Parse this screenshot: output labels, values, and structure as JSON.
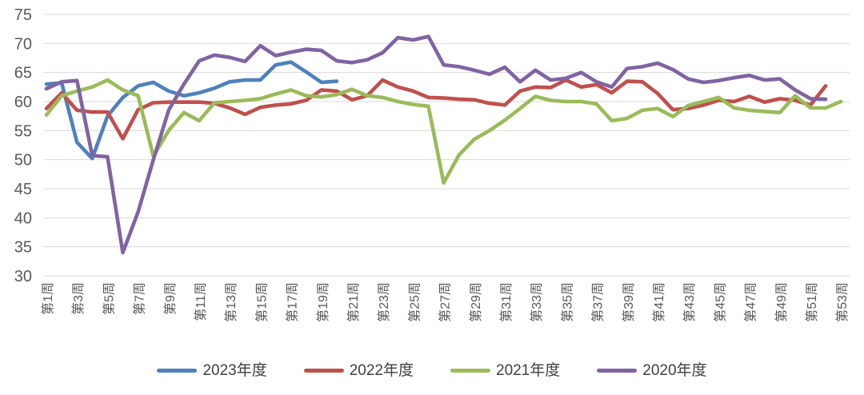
{
  "chart_data": {
    "type": "line",
    "title": "",
    "grid": "horizontal",
    "legend_position": "bottom",
    "background": "#ffffff",
    "gridline_color": "#d9d9d9",
    "axis_text_color": "#595959",
    "legend_text_color": "#3f3f3f",
    "y_axis": {
      "min": 30,
      "max": 75,
      "step": 5,
      "tick_labels": [
        "75",
        "70",
        "65",
        "60",
        "55",
        "50",
        "45",
        "40",
        "35",
        "30"
      ]
    },
    "x_axis": {
      "tick_rotation": -90,
      "label_every": 2,
      "visible_tick_labels": [
        "第1周",
        "第3周",
        "第5周",
        "第7周",
        "第9周",
        "第11周",
        "第13周",
        "第15周",
        "第17周",
        "第19周",
        "第21周",
        "第23周",
        "第25周",
        "第27周",
        "第29周",
        "第31周",
        "第33周",
        "第35周",
        "第37周",
        "第39周",
        "第41周",
        "第43周",
        "第45周",
        "第47周",
        "第49周",
        "第51周",
        "第53周"
      ]
    },
    "categories": [
      "第1周",
      "第2周",
      "第3周",
      "第4周",
      "第5周",
      "第6周",
      "第7周",
      "第8周",
      "第9周",
      "第10周",
      "第11周",
      "第12周",
      "第13周",
      "第14周",
      "第15周",
      "第16周",
      "第17周",
      "第18周",
      "第19周",
      "第20周",
      "第21周",
      "第22周",
      "第23周",
      "第24周",
      "第25周",
      "第26周",
      "第27周",
      "第28周",
      "第29周",
      "第30周",
      "第31周",
      "第32周",
      "第33周",
      "第34周",
      "第35周",
      "第36周",
      "第37周",
      "第38周",
      "第39周",
      "第40周",
      "第41周",
      "第42周",
      "第43周",
      "第44周",
      "第45周",
      "第46周",
      "第47周",
      "第48周",
      "第49周",
      "第50周",
      "第51周",
      "第52周",
      "第53周"
    ],
    "series": [
      {
        "name": "2023年度",
        "color": "#4F81BD",
        "values": [
          63.0,
          63.2,
          53.0,
          50.2,
          57.5,
          60.7,
          62.7,
          63.3,
          61.8,
          61.0,
          61.5,
          62.3,
          63.4,
          63.7,
          63.7,
          66.3,
          66.8,
          65.1,
          63.3,
          63.5
        ]
      },
      {
        "name": "2022年度",
        "color": "#C0504D",
        "values": [
          58.8,
          61.5,
          58.5,
          58.2,
          58.2,
          53.6,
          58.6,
          59.8,
          59.9,
          59.9,
          59.9,
          59.7,
          58.9,
          57.8,
          59.0,
          59.4,
          59.6,
          60.2,
          62.0,
          61.8,
          60.3,
          61.0,
          63.7,
          62.5,
          61.8,
          60.7,
          60.6,
          60.4,
          60.3,
          59.7,
          59.4,
          61.8,
          62.5,
          62.4,
          63.7,
          62.5,
          62.9,
          61.5,
          63.5,
          63.4,
          61.4,
          58.6,
          58.8,
          59.4,
          60.2,
          60.0,
          60.9,
          59.9,
          60.5,
          60.2,
          59.4,
          62.7
        ]
      },
      {
        "name": "2021年度",
        "color": "#9BBB59",
        "values": [
          57.7,
          61.0,
          61.8,
          62.5,
          63.7,
          62.0,
          61.0,
          50.6,
          55.0,
          58.1,
          56.7,
          59.8,
          60.0,
          60.2,
          60.5,
          61.3,
          62.0,
          61.0,
          60.8,
          61.2,
          62.1,
          61.0,
          60.7,
          60.0,
          59.5,
          59.2,
          46.0,
          50.8,
          53.5,
          55.0,
          56.8,
          58.8,
          60.9,
          60.2,
          60.0,
          60.0,
          59.6,
          56.7,
          57.1,
          58.5,
          58.8,
          57.4,
          59.3,
          60.0,
          60.7,
          58.9,
          58.5,
          58.3,
          58.1,
          61.0,
          58.9,
          58.9,
          60.0
        ]
      },
      {
        "name": "2020年度",
        "color": "#8064A2",
        "values": [
          62.2,
          63.4,
          63.6,
          50.7,
          50.5,
          34.0,
          41.0,
          50.0,
          58.5,
          63.0,
          67.0,
          68.0,
          67.6,
          66.9,
          69.6,
          67.9,
          68.5,
          69.0,
          68.8,
          67.0,
          66.7,
          67.2,
          68.4,
          71.0,
          70.6,
          71.2,
          66.3,
          66.0,
          65.4,
          64.7,
          65.9,
          63.4,
          65.4,
          63.7,
          64.0,
          65.0,
          63.4,
          62.5,
          65.7,
          66.0,
          66.6,
          65.5,
          63.9,
          63.3,
          63.6,
          64.1,
          64.5,
          63.7,
          63.9,
          62.0,
          60.5,
          60.4
        ]
      }
    ]
  }
}
